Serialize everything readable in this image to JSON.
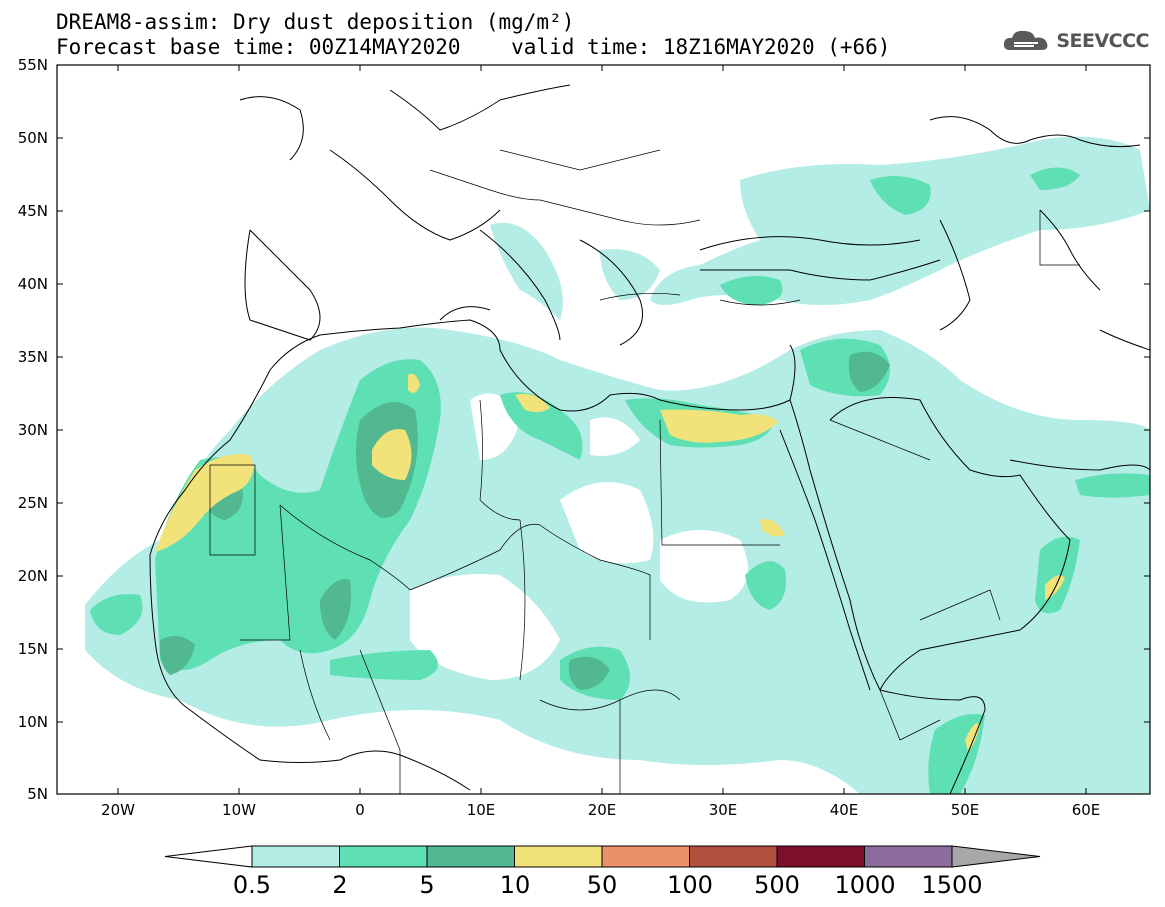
{
  "title": {
    "line1": "DREAM8-assim: Dry dust deposition (mg/m²)",
    "line2": "Forecast base time: 00Z14MAY2020    valid time: 18Z16MAY2020 (+66)"
  },
  "logo": {
    "text": "SEEVCCC",
    "icon": "cloud-icon"
  },
  "map": {
    "lat_labels": [
      "55N",
      "50N",
      "45N",
      "40N",
      "35N",
      "30N",
      "25N",
      "20N",
      "15N",
      "10N",
      "5N"
    ],
    "lon_labels": [
      "20W",
      "10W",
      "0",
      "10E",
      "20E",
      "30E",
      "40E",
      "50E",
      "60E"
    ]
  },
  "colorbar": {
    "labels": [
      "0.5",
      "2",
      "5",
      "10",
      "50",
      "100",
      "500",
      "1000",
      "1500"
    ],
    "colors": [
      "#b3ede5",
      "#5ee0b4",
      "#52b88f",
      "#f2e27a",
      "#ea916a",
      "#b24f3e",
      "#7e0f2c",
      "#8c6c9c"
    ],
    "under_color": "#ffffff",
    "over_color": "#a8a8a8"
  },
  "colors": {
    "level1": "#b3ede5",
    "level2": "#5ee0b4",
    "level3": "#52b88f",
    "level4": "#f2e27a"
  }
}
